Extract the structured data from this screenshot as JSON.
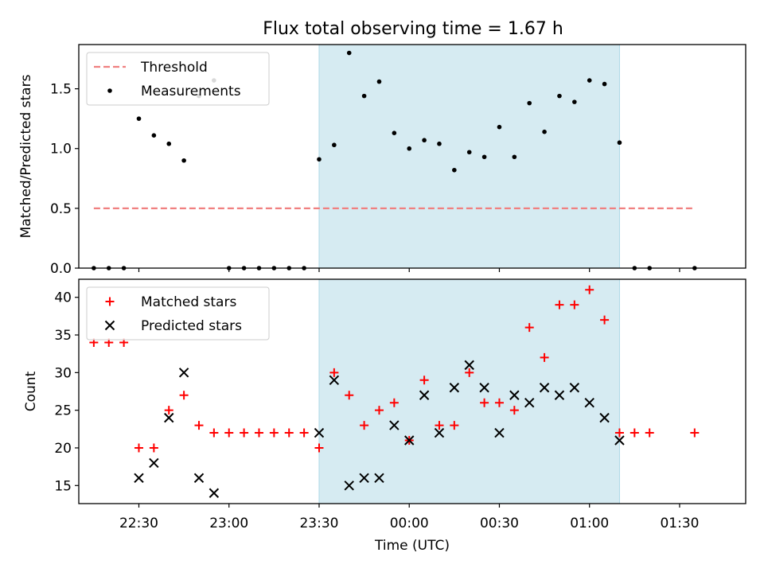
{
  "title": "Flux total observing time = 1.67 h",
  "colors": {
    "threshold": "#f08080",
    "measurement": "#000000",
    "matched": "#ff0000",
    "predicted": "#000000",
    "highlight": "#add8e6"
  },
  "chart_data": [
    {
      "type": "scatter",
      "ylabel": "Matched/Predicted stars",
      "ylim": [
        0,
        1.87
      ],
      "yticks": [
        0.0,
        0.5,
        1.0,
        1.5
      ],
      "ytick_labels": [
        "0.0",
        "0.5",
        "1.0",
        "1.5"
      ],
      "xlim": [
        "22:10",
        "01:52"
      ],
      "x_tick_labels_shown": false,
      "shaded_interval": [
        "23:30",
        "01:10"
      ],
      "legend": {
        "placement": "upper-left",
        "entries": [
          "Threshold",
          "Measurements"
        ]
      },
      "threshold": {
        "name": "Threshold",
        "value": 0.5,
        "x_range": [
          "22:15",
          "01:35"
        ],
        "style": "dashed"
      },
      "series": [
        {
          "name": "Measurements",
          "marker": "dot",
          "points": [
            {
              "x": "22:15",
              "y": 0.0
            },
            {
              "x": "22:20",
              "y": 0.0
            },
            {
              "x": "22:25",
              "y": 0.0
            },
            {
              "x": "22:30",
              "y": 1.25
            },
            {
              "x": "22:35",
              "y": 1.11
            },
            {
              "x": "22:40",
              "y": 1.04
            },
            {
              "x": "22:45",
              "y": 0.9
            },
            {
              "x": "22:50",
              "y": 1.44
            },
            {
              "x": "22:55",
              "y": 1.57
            },
            {
              "x": "23:00",
              "y": 0.0
            },
            {
              "x": "23:05",
              "y": 0.0
            },
            {
              "x": "23:10",
              "y": 0.0
            },
            {
              "x": "23:15",
              "y": 0.0
            },
            {
              "x": "23:20",
              "y": 0.0
            },
            {
              "x": "23:25",
              "y": 0.0
            },
            {
              "x": "23:30",
              "y": 0.91
            },
            {
              "x": "23:35",
              "y": 1.03
            },
            {
              "x": "23:40",
              "y": 1.8
            },
            {
              "x": "23:45",
              "y": 1.44
            },
            {
              "x": "23:50",
              "y": 1.56
            },
            {
              "x": "23:55",
              "y": 1.13
            },
            {
              "x": "00:00",
              "y": 1.0
            },
            {
              "x": "00:05",
              "y": 1.07
            },
            {
              "x": "00:10",
              "y": 1.04
            },
            {
              "x": "00:15",
              "y": 0.82
            },
            {
              "x": "00:20",
              "y": 0.97
            },
            {
              "x": "00:25",
              "y": 0.93
            },
            {
              "x": "00:30",
              "y": 1.18
            },
            {
              "x": "00:35",
              "y": 0.93
            },
            {
              "x": "00:40",
              "y": 1.38
            },
            {
              "x": "00:45",
              "y": 1.14
            },
            {
              "x": "00:50",
              "y": 1.44
            },
            {
              "x": "00:55",
              "y": 1.39
            },
            {
              "x": "01:00",
              "y": 1.57
            },
            {
              "x": "01:05",
              "y": 1.54
            },
            {
              "x": "01:10",
              "y": 1.05
            },
            {
              "x": "01:15",
              "y": 0.0
            },
            {
              "x": "01:20",
              "y": 0.0
            },
            {
              "x": "01:35",
              "y": 0.0
            }
          ]
        }
      ]
    },
    {
      "type": "scatter",
      "xlabel": "Time (UTC)",
      "ylabel": "Count",
      "ylim": [
        12.6,
        42.4
      ],
      "yticks": [
        15,
        20,
        25,
        30,
        35,
        40
      ],
      "ytick_labels": [
        "15",
        "20",
        "25",
        "30",
        "35",
        "40"
      ],
      "xlim": [
        "22:10",
        "01:52"
      ],
      "xticks": [
        "22:30",
        "23:00",
        "23:30",
        "00:00",
        "00:30",
        "01:00",
        "01:30"
      ],
      "xtick_labels": [
        "22:30",
        "23:00",
        "23:30",
        "00:00",
        "00:30",
        "01:00",
        "01:30"
      ],
      "shaded_interval": [
        "23:30",
        "01:10"
      ],
      "legend": {
        "placement": "upper-left",
        "entries": [
          "Matched stars",
          "Predicted stars"
        ]
      },
      "series": [
        {
          "name": "Matched stars",
          "marker": "plus",
          "points": [
            {
              "x": "22:15",
              "y": 34
            },
            {
              "x": "22:20",
              "y": 34
            },
            {
              "x": "22:25",
              "y": 34
            },
            {
              "x": "22:30",
              "y": 20
            },
            {
              "x": "22:35",
              "y": 20
            },
            {
              "x": "22:40",
              "y": 25
            },
            {
              "x": "22:45",
              "y": 27
            },
            {
              "x": "22:50",
              "y": 23
            },
            {
              "x": "22:55",
              "y": 22
            },
            {
              "x": "23:00",
              "y": 22
            },
            {
              "x": "23:05",
              "y": 22
            },
            {
              "x": "23:10",
              "y": 22
            },
            {
              "x": "23:15",
              "y": 22
            },
            {
              "x": "23:20",
              "y": 22
            },
            {
              "x": "23:25",
              "y": 22
            },
            {
              "x": "23:30",
              "y": 20
            },
            {
              "x": "23:35",
              "y": 30
            },
            {
              "x": "23:40",
              "y": 27
            },
            {
              "x": "23:45",
              "y": 23
            },
            {
              "x": "23:50",
              "y": 25
            },
            {
              "x": "23:55",
              "y": 26
            },
            {
              "x": "00:00",
              "y": 21
            },
            {
              "x": "00:05",
              "y": 29
            },
            {
              "x": "00:10",
              "y": 23
            },
            {
              "x": "00:15",
              "y": 23
            },
            {
              "x": "00:20",
              "y": 30
            },
            {
              "x": "00:25",
              "y": 26
            },
            {
              "x": "00:30",
              "y": 26
            },
            {
              "x": "00:35",
              "y": 25
            },
            {
              "x": "00:40",
              "y": 36
            },
            {
              "x": "00:45",
              "y": 32
            },
            {
              "x": "00:50",
              "y": 39
            },
            {
              "x": "00:55",
              "y": 39
            },
            {
              "x": "01:00",
              "y": 41
            },
            {
              "x": "01:05",
              "y": 37
            },
            {
              "x": "01:10",
              "y": 22
            },
            {
              "x": "01:15",
              "y": 22
            },
            {
              "x": "01:20",
              "y": 22
            },
            {
              "x": "01:35",
              "y": 22
            }
          ]
        },
        {
          "name": "Predicted stars",
          "marker": "x",
          "points": [
            {
              "x": "22:30",
              "y": 16
            },
            {
              "x": "22:35",
              "y": 18
            },
            {
              "x": "22:40",
              "y": 24
            },
            {
              "x": "22:45",
              "y": 30
            },
            {
              "x": "22:50",
              "y": 16
            },
            {
              "x": "22:55",
              "y": 14
            },
            {
              "x": "23:30",
              "y": 22
            },
            {
              "x": "23:35",
              "y": 29
            },
            {
              "x": "23:40",
              "y": 15
            },
            {
              "x": "23:45",
              "y": 16
            },
            {
              "x": "23:50",
              "y": 16
            },
            {
              "x": "23:55",
              "y": 23
            },
            {
              "x": "00:00",
              "y": 21
            },
            {
              "x": "00:05",
              "y": 27
            },
            {
              "x": "00:10",
              "y": 22
            },
            {
              "x": "00:15",
              "y": 28
            },
            {
              "x": "00:20",
              "y": 31
            },
            {
              "x": "00:25",
              "y": 28
            },
            {
              "x": "00:30",
              "y": 22
            },
            {
              "x": "00:35",
              "y": 27
            },
            {
              "x": "00:40",
              "y": 26
            },
            {
              "x": "00:45",
              "y": 28
            },
            {
              "x": "00:50",
              "y": 27
            },
            {
              "x": "00:55",
              "y": 28
            },
            {
              "x": "01:00",
              "y": 26
            },
            {
              "x": "01:05",
              "y": 24
            },
            {
              "x": "01:10",
              "y": 21
            }
          ]
        }
      ]
    }
  ]
}
